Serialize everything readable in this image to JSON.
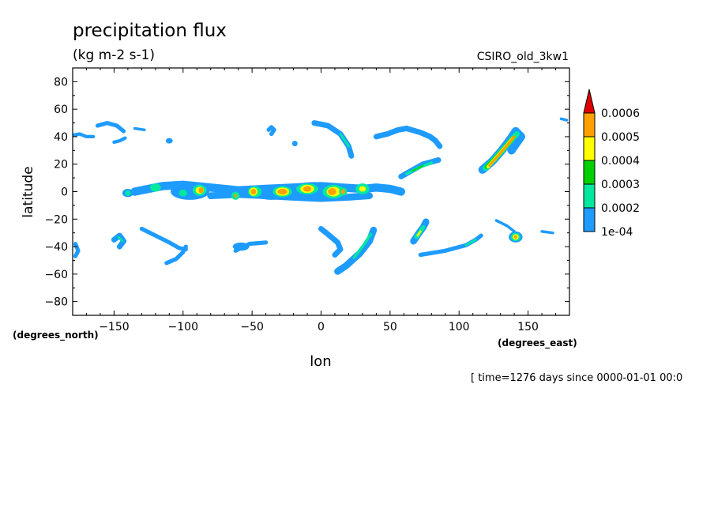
{
  "chart_data": {
    "type": "heatmap",
    "title": "precipitation flux",
    "subtitle": "(kg m-2 s-1)",
    "dataset_label": "CSIRO_old_3kw1",
    "xlabel": "lon",
    "ylabel": "latitude",
    "x_units": "(degrees_east)",
    "y_units": "(degrees_north)",
    "time_note": "[ time=1276 days since 0000-01-01 00:0",
    "xlim": [
      -180,
      180
    ],
    "ylim": [
      -90,
      90
    ],
    "x_ticks": [
      -150,
      -100,
      -50,
      0,
      50,
      100,
      150
    ],
    "y_ticks": [
      80,
      60,
      40,
      20,
      0,
      -20,
      -40,
      -60,
      -80
    ],
    "grid": false,
    "colorbar": {
      "placement": "right",
      "levels": [
        "1e-04",
        "0.0002",
        "0.0003",
        "0.0004",
        "0.0005",
        "0.0006"
      ],
      "colors": [
        "#1e9bff",
        "#00e8a0",
        "#00d000",
        "#ffff00",
        "#ffa000",
        "#e00000"
      ]
    },
    "features": [
      {
        "kind": "band",
        "level": 1,
        "pts": [
          [
            -180,
            41
          ],
          [
            -175,
            42
          ],
          [
            -170,
            40
          ],
          [
            -165,
            40
          ]
        ],
        "w": 2.5
      },
      {
        "kind": "band",
        "level": 1,
        "pts": [
          [
            -162,
            48
          ],
          [
            -155,
            50
          ],
          [
            -148,
            48
          ],
          [
            -143,
            44
          ]
        ],
        "w": 3
      },
      {
        "kind": "band",
        "level": 1,
        "pts": [
          [
            -150,
            36
          ],
          [
            -146,
            37
          ],
          [
            -142,
            39
          ]
        ],
        "w": 2.5
      },
      {
        "kind": "band",
        "level": 1,
        "pts": [
          [
            -135,
            46
          ],
          [
            -128,
            45
          ]
        ],
        "w": 2
      },
      {
        "kind": "blob",
        "level": 1,
        "c": [
          -110,
          37
        ],
        "r": [
          2.5,
          2
        ]
      },
      {
        "kind": "band",
        "level": 1,
        "pts": [
          [
            -38,
            45
          ],
          [
            -36,
            47
          ],
          [
            -34,
            45
          ],
          [
            -36,
            42
          ]
        ],
        "w": 3
      },
      {
        "kind": "blob",
        "level": 1,
        "c": [
          -19,
          35
        ],
        "r": [
          2,
          2
        ]
      },
      {
        "kind": "band",
        "level": 1,
        "pts": [
          [
            -5,
            50
          ],
          [
            5,
            48
          ],
          [
            14,
            42
          ],
          [
            20,
            33
          ],
          [
            22,
            26
          ]
        ],
        "w": 4
      },
      {
        "kind": "band",
        "level": 2,
        "pts": [
          [
            14,
            42
          ],
          [
            20,
            33
          ]
        ],
        "w": 1.6
      },
      {
        "kind": "band",
        "level": 1,
        "pts": [
          [
            40,
            40
          ],
          [
            48,
            42
          ],
          [
            56,
            45
          ],
          [
            62,
            46
          ],
          [
            72,
            43
          ],
          [
            79,
            40
          ],
          [
            83,
            37
          ],
          [
            86,
            33
          ]
        ],
        "w": 4
      },
      {
        "kind": "band",
        "level": 1,
        "pts": [
          [
            58,
            11
          ],
          [
            65,
            15
          ],
          [
            74,
            20
          ],
          [
            85,
            23
          ]
        ],
        "w": 4
      },
      {
        "kind": "band",
        "level": 2,
        "pts": [
          [
            62,
            13
          ],
          [
            70,
            17
          ],
          [
            80,
            21
          ]
        ],
        "w": 2
      },
      {
        "kind": "band",
        "level": 3,
        "pts": [
          [
            66,
            15
          ],
          [
            74,
            19
          ]
        ],
        "w": 1
      },
      {
        "kind": "band",
        "level": 1,
        "pts": [
          [
            117,
            16
          ],
          [
            124,
            22
          ],
          [
            131,
            30
          ],
          [
            137,
            38
          ],
          [
            141,
            44
          ],
          [
            145,
            40
          ],
          [
            138,
            30
          ]
        ],
        "w": 6
      },
      {
        "kind": "band",
        "level": 2,
        "pts": [
          [
            119,
            17
          ],
          [
            126,
            24
          ],
          [
            133,
            32
          ],
          [
            139,
            39
          ],
          [
            142,
            42
          ]
        ],
        "w": 4
      },
      {
        "kind": "band",
        "level": 3,
        "pts": [
          [
            120,
            18
          ],
          [
            127,
            25
          ],
          [
            134,
            33
          ],
          [
            139,
            39
          ]
        ],
        "w": 3
      },
      {
        "kind": "band",
        "level": 4,
        "pts": [
          [
            121,
            18
          ],
          [
            128,
            26
          ],
          [
            134,
            33
          ],
          [
            139,
            39
          ]
        ],
        "w": 2.4
      },
      {
        "kind": "band",
        "level": 5,
        "pts": [
          [
            122,
            19
          ],
          [
            129,
            27
          ],
          [
            135,
            34
          ],
          [
            140,
            40
          ]
        ],
        "w": 1.8
      },
      {
        "kind": "band",
        "level": 1,
        "pts": [
          [
            174,
            53
          ],
          [
            178,
            52
          ]
        ],
        "w": 2
      },
      {
        "kind": "band",
        "level": 1,
        "pts": [
          [
            -135,
            0
          ],
          [
            -115,
            4
          ],
          [
            -100,
            5
          ],
          [
            -80,
            3
          ],
          [
            -60,
            1
          ],
          [
            -40,
            2
          ],
          [
            -20,
            3
          ],
          [
            0,
            4
          ],
          [
            15,
            3
          ],
          [
            30,
            2
          ],
          [
            40,
            3
          ],
          [
            50,
            2
          ],
          [
            58,
            0
          ]
        ],
        "w": 6
      },
      {
        "kind": "band",
        "level": 1,
        "pts": [
          [
            -80,
            -3
          ],
          [
            -60,
            -2
          ],
          [
            -40,
            -3
          ],
          [
            -20,
            -4
          ],
          [
            0,
            -5
          ],
          [
            20,
            -4
          ],
          [
            35,
            -3
          ]
        ],
        "w": 5
      },
      {
        "kind": "blob",
        "level": 1,
        "c": [
          -95,
          0
        ],
        "r": [
          14,
          6
        ]
      },
      {
        "kind": "blob",
        "level": 1,
        "c": [
          -5,
          0
        ],
        "r": [
          20,
          7
        ]
      },
      {
        "kind": "blob",
        "level": 1,
        "c": [
          -36,
          -1
        ],
        "r": [
          12,
          5
        ]
      },
      {
        "kind": "blob",
        "level": 1,
        "c": [
          -140,
          -1
        ],
        "r": [
          4,
          3
        ]
      },
      {
        "kind": "blob",
        "level": 2,
        "c": [
          -140,
          -1
        ],
        "r": [
          2,
          2
        ]
      },
      {
        "kind": "blob",
        "level": 2,
        "c": [
          -120,
          3
        ],
        "r": [
          4,
          3
        ]
      },
      {
        "kind": "blob",
        "level": 2,
        "c": [
          -100,
          -1
        ],
        "r": [
          3,
          2.5
        ]
      },
      {
        "kind": "blob",
        "level": 2,
        "c": [
          -88,
          1
        ],
        "r": [
          5,
          4
        ]
      },
      {
        "kind": "blob",
        "level": 4,
        "c": [
          -88,
          1
        ],
        "r": [
          3,
          2.5
        ]
      },
      {
        "kind": "blob",
        "level": 5,
        "c": [
          -87,
          1
        ],
        "r": [
          1.8,
          2
        ]
      },
      {
        "kind": "blob",
        "level": 2,
        "c": [
          -62,
          -3
        ],
        "r": [
          3,
          3
        ]
      },
      {
        "kind": "blob",
        "level": 5,
        "c": [
          -62,
          -3
        ],
        "r": [
          1,
          1.5
        ]
      },
      {
        "kind": "blob",
        "level": 2,
        "c": [
          -48,
          0
        ],
        "r": [
          5,
          4
        ]
      },
      {
        "kind": "blob",
        "level": 4,
        "c": [
          -49,
          0
        ],
        "r": [
          3,
          3
        ]
      },
      {
        "kind": "blob",
        "level": 5,
        "c": [
          -49,
          0
        ],
        "r": [
          2,
          2
        ]
      },
      {
        "kind": "blob",
        "level": 2,
        "c": [
          -28,
          0
        ],
        "r": [
          7,
          4
        ]
      },
      {
        "kind": "blob",
        "level": 4,
        "c": [
          -28,
          0
        ],
        "r": [
          5,
          3
        ]
      },
      {
        "kind": "blob",
        "level": 5,
        "c": [
          -28,
          0
        ],
        "r": [
          3.5,
          2
        ]
      },
      {
        "kind": "blob",
        "level": 2,
        "c": [
          -10,
          2
        ],
        "r": [
          8,
          4
        ]
      },
      {
        "kind": "blob",
        "level": 4,
        "c": [
          -10,
          2
        ],
        "r": [
          5,
          3
        ]
      },
      {
        "kind": "blob",
        "level": 5,
        "c": [
          -10,
          2
        ],
        "r": [
          3,
          2
        ]
      },
      {
        "kind": "blob",
        "level": 2,
        "c": [
          9,
          0
        ],
        "r": [
          8,
          5
        ]
      },
      {
        "kind": "blob",
        "level": 4,
        "c": [
          9,
          0
        ],
        "r": [
          5,
          3.5
        ]
      },
      {
        "kind": "blob",
        "level": 5,
        "c": [
          8,
          0
        ],
        "r": [
          3,
          2.5
        ]
      },
      {
        "kind": "blob",
        "level": 2,
        "c": [
          16,
          0
        ],
        "r": [
          3,
          3
        ]
      },
      {
        "kind": "blob",
        "level": 5,
        "c": [
          16,
          0
        ],
        "r": [
          1.5,
          1.8
        ]
      },
      {
        "kind": "blob",
        "level": 2,
        "c": [
          30,
          2
        ],
        "r": [
          5,
          4
        ]
      },
      {
        "kind": "blob",
        "level": 4,
        "c": [
          30,
          2
        ],
        "r": [
          2.5,
          2
        ]
      },
      {
        "kind": "band",
        "level": 1,
        "pts": [
          [
            -178,
            -38
          ],
          [
            -176,
            -43
          ],
          [
            -178,
            -47
          ]
        ],
        "w": 3
      },
      {
        "kind": "band",
        "level": 1,
        "pts": [
          [
            -150,
            -35
          ],
          [
            -146,
            -32
          ],
          [
            -143,
            -36
          ],
          [
            -146,
            -40
          ]
        ],
        "w": 4
      },
      {
        "kind": "band",
        "level": 2,
        "pts": [
          [
            -147,
            -33
          ],
          [
            -144,
            -36
          ]
        ],
        "w": 1.5
      },
      {
        "kind": "band",
        "level": 1,
        "pts": [
          [
            -130,
            -27
          ],
          [
            -120,
            -32
          ],
          [
            -110,
            -37
          ],
          [
            -103,
            -41
          ],
          [
            -98,
            -42
          ]
        ],
        "w": 3
      },
      {
        "kind": "band",
        "level": 1,
        "pts": [
          [
            -98,
            -40
          ],
          [
            -100,
            -44
          ],
          [
            -105,
            -49
          ],
          [
            -112,
            -52
          ]
        ],
        "w": 3
      },
      {
        "kind": "blob",
        "level": 1,
        "c": [
          -58,
          -40
        ],
        "r": [
          6,
          3
        ]
      },
      {
        "kind": "band",
        "level": 1,
        "pts": [
          [
            -62,
            -43
          ],
          [
            -52,
            -38
          ],
          [
            -40,
            -37
          ]
        ],
        "w": 3
      },
      {
        "kind": "band",
        "level": 1,
        "pts": [
          [
            0,
            -27
          ],
          [
            5,
            -31
          ],
          [
            12,
            -37
          ],
          [
            14,
            -42
          ],
          [
            10,
            -46
          ]
        ],
        "w": 4
      },
      {
        "kind": "band",
        "level": 1,
        "pts": [
          [
            38,
            -28
          ],
          [
            35,
            -36
          ],
          [
            28,
            -45
          ],
          [
            18,
            -54
          ],
          [
            12,
            -58
          ]
        ],
        "w": 5
      },
      {
        "kind": "band",
        "level": 2,
        "pts": [
          [
            36,
            -31
          ],
          [
            30,
            -40
          ],
          [
            24,
            -48
          ]
        ],
        "w": 2
      },
      {
        "kind": "band",
        "level": 1,
        "pts": [
          [
            67,
            -36
          ],
          [
            71,
            -30
          ],
          [
            74,
            -26
          ],
          [
            76,
            -22
          ]
        ],
        "w": 5
      },
      {
        "kind": "band",
        "level": 2,
        "pts": [
          [
            69,
            -33
          ],
          [
            72,
            -29
          ],
          [
            74,
            -26
          ]
        ],
        "w": 3
      },
      {
        "kind": "band",
        "level": 4,
        "pts": [
          [
            70,
            -32
          ],
          [
            72,
            -29
          ]
        ],
        "w": 1.5
      },
      {
        "kind": "band",
        "level": 1,
        "pts": [
          [
            72,
            -46
          ],
          [
            90,
            -43
          ],
          [
            105,
            -39
          ],
          [
            112,
            -35
          ],
          [
            116,
            -32
          ]
        ],
        "w": 3
      },
      {
        "kind": "band",
        "level": 2,
        "pts": [
          [
            105,
            -39
          ],
          [
            112,
            -35
          ]
        ],
        "w": 1.5
      },
      {
        "kind": "band",
        "level": 1,
        "pts": [
          [
            127,
            -21
          ],
          [
            135,
            -25
          ],
          [
            140,
            -29
          ]
        ],
        "w": 2
      },
      {
        "kind": "blob",
        "level": 1,
        "c": [
          141,
          -33
        ],
        "r": [
          5,
          4
        ]
      },
      {
        "kind": "blob",
        "level": 2,
        "c": [
          141,
          -33
        ],
        "r": [
          3.5,
          3
        ]
      },
      {
        "kind": "blob",
        "level": 4,
        "c": [
          141,
          -33
        ],
        "r": [
          2.2,
          2
        ]
      },
      {
        "kind": "blob",
        "level": 5,
        "c": [
          141,
          -33
        ],
        "r": [
          1.2,
          1.2
        ]
      },
      {
        "kind": "band",
        "level": 1,
        "pts": [
          [
            160,
            -29
          ],
          [
            168,
            -30
          ]
        ],
        "w": 2
      }
    ]
  }
}
